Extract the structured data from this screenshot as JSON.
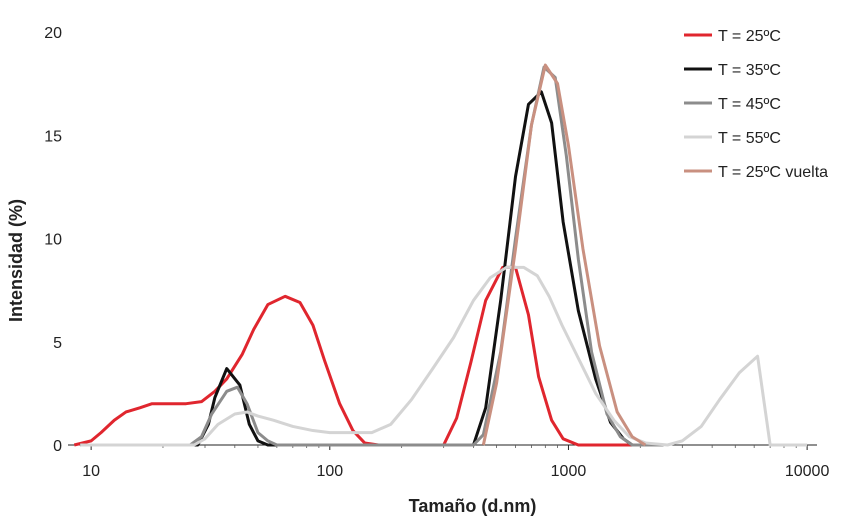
{
  "chart_data": {
    "type": "line",
    "xlabel": "Tamaño (d.nm)",
    "ylabel": "Intensidad (%)",
    "x_scale": "log",
    "xlim": [
      8,
      11000
    ],
    "ylim": [
      0,
      20
    ],
    "x_ticks": [
      10,
      100,
      1000,
      10000
    ],
    "x_tick_labels": [
      "10",
      "100",
      "1000",
      "10000"
    ],
    "y_ticks": [
      0,
      5,
      10,
      15,
      20
    ],
    "y_tick_labels": [
      "0",
      "5",
      "10",
      "15",
      "20"
    ],
    "grid": false,
    "legend_position": "top-right",
    "series": [
      {
        "name": "T = 25ºC",
        "color": "#e0262e",
        "points": [
          [
            8.5,
            0
          ],
          [
            10,
            0.2
          ],
          [
            11,
            0.6
          ],
          [
            12.5,
            1.2
          ],
          [
            14,
            1.6
          ],
          [
            16,
            1.8
          ],
          [
            18,
            2
          ],
          [
            21,
            2
          ],
          [
            25,
            2
          ],
          [
            29,
            2.1
          ],
          [
            33,
            2.6
          ],
          [
            37,
            3.2
          ],
          [
            43,
            4.4
          ],
          [
            48,
            5.6
          ],
          [
            55,
            6.8
          ],
          [
            65,
            7.2
          ],
          [
            75,
            6.9
          ],
          [
            85,
            5.8
          ],
          [
            95,
            4.1
          ],
          [
            110,
            2
          ],
          [
            125,
            0.7
          ],
          [
            140,
            0.1
          ],
          [
            160,
            0
          ],
          [
            200,
            0
          ],
          [
            300,
            0
          ],
          [
            340,
            1.3
          ],
          [
            390,
            4
          ],
          [
            450,
            7
          ],
          [
            530,
            8.6
          ],
          [
            600,
            8.6
          ],
          [
            680,
            6.3
          ],
          [
            750,
            3.3
          ],
          [
            850,
            1.2
          ],
          [
            950,
            0.3
          ],
          [
            1100,
            0
          ],
          [
            1500,
            0
          ],
          [
            2000,
            0
          ]
        ]
      },
      {
        "name": "T = 35ºC",
        "color": "#111111",
        "points": [
          [
            9,
            0
          ],
          [
            20,
            0
          ],
          [
            28,
            0
          ],
          [
            31,
            1
          ],
          [
            33,
            2.3
          ],
          [
            37,
            3.7
          ],
          [
            42,
            2.9
          ],
          [
            46,
            1
          ],
          [
            50,
            0.2
          ],
          [
            55,
            0
          ],
          [
            100,
            0
          ],
          [
            200,
            0
          ],
          [
            400,
            0
          ],
          [
            450,
            1.8
          ],
          [
            520,
            7
          ],
          [
            600,
            13
          ],
          [
            680,
            16.5
          ],
          [
            770,
            17.1
          ],
          [
            850,
            15.6
          ],
          [
            950,
            10.8
          ],
          [
            1100,
            6.5
          ],
          [
            1300,
            3.2
          ],
          [
            1500,
            1.1
          ],
          [
            1700,
            0.3
          ],
          [
            1850,
            0
          ],
          [
            2500,
            0
          ]
        ]
      },
      {
        "name": "T = 45ºC",
        "color": "#8c8c8c",
        "points": [
          [
            9,
            0
          ],
          [
            20,
            0
          ],
          [
            26,
            0
          ],
          [
            29,
            0.4
          ],
          [
            32,
            1.5
          ],
          [
            37,
            2.6
          ],
          [
            41,
            2.8
          ],
          [
            45,
            2
          ],
          [
            50,
            0.6
          ],
          [
            55,
            0.2
          ],
          [
            60,
            0
          ],
          [
            100,
            0
          ],
          [
            200,
            0
          ],
          [
            400,
            0
          ],
          [
            440,
            0.5
          ],
          [
            520,
            4.5
          ],
          [
            600,
            10
          ],
          [
            700,
            15.5
          ],
          [
            790,
            18.3
          ],
          [
            880,
            17.8
          ],
          [
            980,
            14
          ],
          [
            1100,
            9
          ],
          [
            1250,
            4.5
          ],
          [
            1450,
            1.5
          ],
          [
            1650,
            0.4
          ],
          [
            1850,
            0
          ],
          [
            2500,
            0
          ]
        ]
      },
      {
        "name": "T = 55ºC",
        "color": "#d4d4d4",
        "points": [
          [
            9,
            0
          ],
          [
            20,
            0
          ],
          [
            27,
            0
          ],
          [
            30,
            0.3
          ],
          [
            34,
            1
          ],
          [
            40,
            1.5
          ],
          [
            45,
            1.6
          ],
          [
            50,
            1.4
          ],
          [
            58,
            1.2
          ],
          [
            70,
            0.9
          ],
          [
            85,
            0.7
          ],
          [
            100,
            0.6
          ],
          [
            120,
            0.6
          ],
          [
            150,
            0.6
          ],
          [
            180,
            1
          ],
          [
            220,
            2.2
          ],
          [
            270,
            3.7
          ],
          [
            330,
            5.2
          ],
          [
            400,
            7
          ],
          [
            470,
            8.1
          ],
          [
            550,
            8.6
          ],
          [
            650,
            8.6
          ],
          [
            740,
            8.2
          ],
          [
            830,
            7.2
          ],
          [
            940,
            5.8
          ],
          [
            1100,
            4.2
          ],
          [
            1300,
            2.5
          ],
          [
            1550,
            1.2
          ],
          [
            1800,
            0.4
          ],
          [
            2100,
            0.1
          ],
          [
            2600,
            0
          ],
          [
            3000,
            0.2
          ],
          [
            3600,
            0.9
          ],
          [
            4300,
            2.2
          ],
          [
            5200,
            3.5
          ],
          [
            6200,
            4.3
          ],
          [
            7000,
            0
          ],
          [
            10000,
            0
          ]
        ]
      },
      {
        "name": "T = 25ºC vuelta",
        "color": "#c99080",
        "points": [
          [
            440,
            0
          ],
          [
            500,
            3
          ],
          [
            600,
            9.5
          ],
          [
            700,
            15.5
          ],
          [
            800,
            18.4
          ],
          [
            900,
            17.5
          ],
          [
            1000,
            14.5
          ],
          [
            1150,
            9.5
          ],
          [
            1350,
            4.8
          ],
          [
            1600,
            1.6
          ],
          [
            1850,
            0.4
          ],
          [
            2100,
            0
          ]
        ]
      }
    ]
  }
}
